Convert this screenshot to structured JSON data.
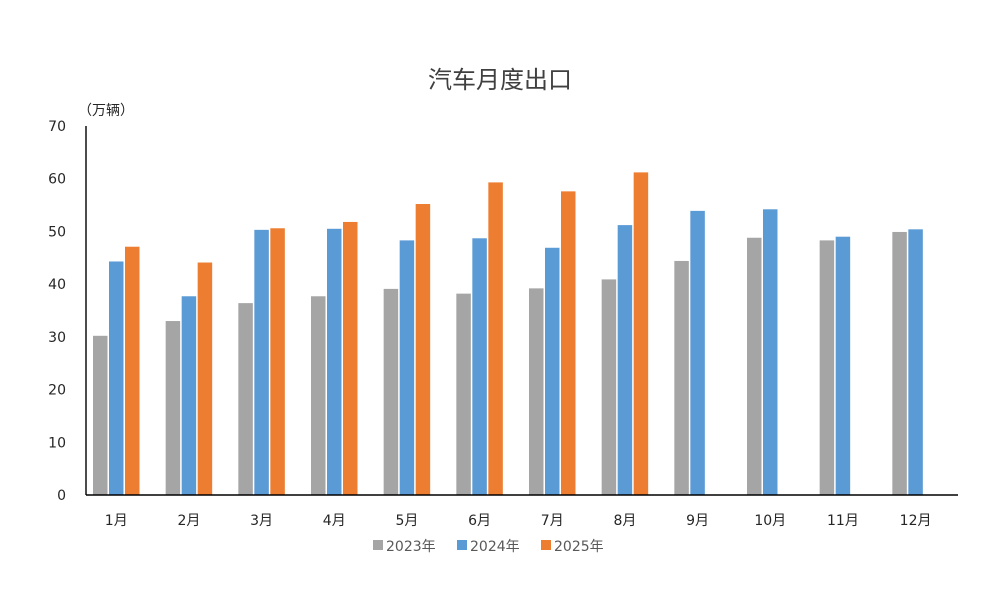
{
  "chart_data": {
    "type": "bar",
    "title": "汽车月度出口",
    "unit_label": "（万辆）",
    "ylim": [
      0,
      70
    ],
    "yticks": [
      0,
      10,
      20,
      30,
      40,
      50,
      60,
      70
    ],
    "grid": false,
    "legend_position": "bottom",
    "categories": [
      "1月",
      "2月",
      "3月",
      "4月",
      "5月",
      "6月",
      "7月",
      "8月",
      "9月",
      "10月",
      "11月",
      "12月"
    ],
    "series": [
      {
        "name": "2023年",
        "color": "#a5a5a5",
        "values": [
          30.2,
          33.0,
          36.4,
          37.7,
          39.1,
          38.2,
          39.2,
          40.9,
          44.4,
          48.8,
          48.3,
          49.9
        ]
      },
      {
        "name": "2024年",
        "color": "#5b9bd5",
        "values": [
          44.3,
          37.7,
          50.3,
          50.5,
          48.3,
          48.7,
          46.9,
          51.2,
          53.9,
          54.2,
          49.0,
          50.4
        ]
      },
      {
        "name": "2025年",
        "color": "#ed7d31",
        "values": [
          47.1,
          44.1,
          50.6,
          51.8,
          55.2,
          59.3,
          57.6,
          61.2,
          null,
          null,
          null,
          null
        ]
      }
    ]
  }
}
